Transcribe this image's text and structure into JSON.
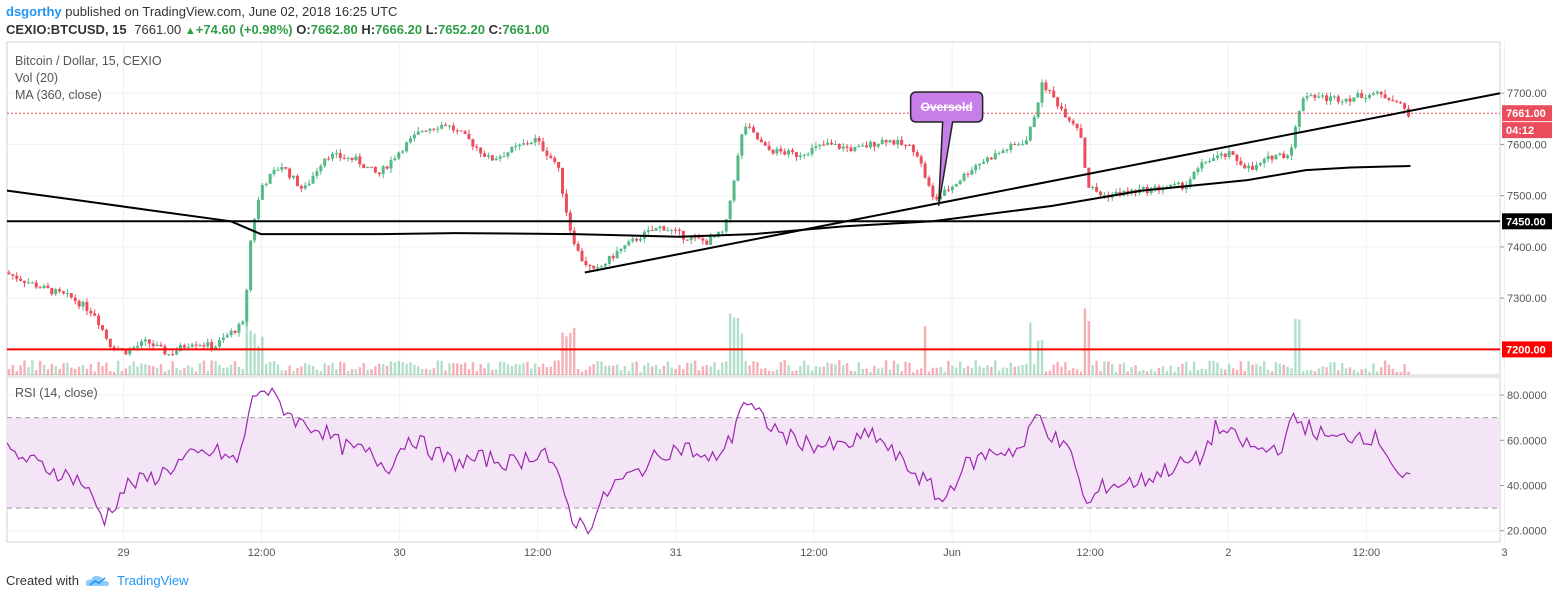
{
  "header": {
    "user": "dsgorthy",
    "published": "published on TradingView.com, June 02, 2018 16:25 UTC",
    "symbol": "CEXIO:BTCUSD, 15",
    "last": "7661.00",
    "change_arrow": "▲",
    "change": "+74.60 (+0.98%)",
    "o_label": "O:",
    "o": "7662.80",
    "h_label": "H:",
    "h": "7666.20",
    "l_label": "L:",
    "l": "7652.20",
    "c_label": "C:",
    "c": "7661.00"
  },
  "footer": {
    "created_with": "Created with",
    "brand": "TradingView",
    "logo_icon": "tradingview-cloud-icon"
  },
  "colors": {
    "up": "#53b987",
    "down": "#eb4d5c",
    "rsi": "#9c27b0",
    "rsi_band": "#f3e5f5",
    "resistance_red": "#ff0000",
    "accent_blue": "#2196f3"
  },
  "chart_data": [
    {
      "type": "candlestick",
      "title": "Bitcoin / Dollar, 15, CEXIO",
      "legend": [
        "Vol (20)",
        "MA (360, close)"
      ],
      "x_ticks": [
        "29",
        "12:00",
        "30",
        "12:00",
        "31",
        "12:00",
        "Jun",
        "12:00",
        "2",
        "12:00",
        "3"
      ],
      "y_ticks": [
        "7700.00",
        "7600.00",
        "7500.00",
        "7400.00",
        "7300.00"
      ],
      "ylim": [
        7150,
        7800
      ],
      "price_tags": [
        {
          "label": "7661.00",
          "value": 7661,
          "color": "#eb4d5c"
        },
        {
          "label": "04:12",
          "value": 7628,
          "color": "#eb4d5c"
        },
        {
          "label": "7450.00",
          "value": 7450,
          "color": "#000000"
        },
        {
          "label": "7200.00",
          "value": 7200,
          "color": "#ff0000"
        }
      ],
      "horizontal_lines": [
        {
          "value": 7450,
          "color": "#000000"
        },
        {
          "value": 7200,
          "color": "#ff0000"
        }
      ],
      "last_price_line": 7661,
      "trendline": {
        "from": {
          "x": 0.387,
          "y": 7350
        },
        "to": {
          "x": 1.0,
          "y": 7700
        }
      },
      "annotation": {
        "text": "Oversold",
        "x": 0.624,
        "y": 7480
      },
      "price_path": [
        [
          0.0,
          7350
        ],
        [
          0.025,
          7320
        ],
        [
          0.045,
          7300
        ],
        [
          0.06,
          7270
        ],
        [
          0.07,
          7210
        ],
        [
          0.08,
          7195
        ],
        [
          0.095,
          7215
        ],
        [
          0.11,
          7190
        ],
        [
          0.125,
          7215
        ],
        [
          0.14,
          7205
        ],
        [
          0.15,
          7230
        ],
        [
          0.16,
          7250
        ],
        [
          0.165,
          7430
        ],
        [
          0.172,
          7520
        ],
        [
          0.185,
          7560
        ],
        [
          0.2,
          7510
        ],
        [
          0.215,
          7580
        ],
        [
          0.235,
          7570
        ],
        [
          0.25,
          7540
        ],
        [
          0.265,
          7590
        ],
        [
          0.28,
          7630
        ],
        [
          0.295,
          7640
        ],
        [
          0.31,
          7610
        ],
        [
          0.325,
          7570
        ],
        [
          0.34,
          7590
        ],
        [
          0.355,
          7610
        ],
        [
          0.37,
          7560
        ],
        [
          0.378,
          7440
        ],
        [
          0.385,
          7380
        ],
        [
          0.395,
          7350
        ],
        [
          0.41,
          7390
        ],
        [
          0.425,
          7420
        ],
        [
          0.44,
          7440
        ],
        [
          0.455,
          7420
        ],
        [
          0.47,
          7410
        ],
        [
          0.482,
          7430
        ],
        [
          0.488,
          7530
        ],
        [
          0.495,
          7640
        ],
        [
          0.51,
          7590
        ],
        [
          0.53,
          7580
        ],
        [
          0.55,
          7600
        ],
        [
          0.57,
          7590
        ],
        [
          0.59,
          7610
        ],
        [
          0.61,
          7590
        ],
        [
          0.622,
          7490
        ],
        [
          0.635,
          7520
        ],
        [
          0.65,
          7560
        ],
        [
          0.67,
          7590
        ],
        [
          0.685,
          7610
        ],
        [
          0.695,
          7720
        ],
        [
          0.71,
          7660
        ],
        [
          0.72,
          7630
        ],
        [
          0.725,
          7520
        ],
        [
          0.735,
          7500
        ],
        [
          0.76,
          7510
        ],
        [
          0.79,
          7520
        ],
        [
          0.805,
          7570
        ],
        [
          0.82,
          7580
        ],
        [
          0.835,
          7550
        ],
        [
          0.85,
          7580
        ],
        [
          0.86,
          7580
        ],
        [
          0.87,
          7700
        ],
        [
          0.885,
          7690
        ],
        [
          0.9,
          7690
        ],
        [
          0.915,
          7700
        ],
        [
          0.93,
          7690
        ],
        [
          0.94,
          7661
        ]
      ],
      "ma360_path": [
        [
          0.0,
          7510
        ],
        [
          0.05,
          7490
        ],
        [
          0.1,
          7470
        ],
        [
          0.15,
          7450
        ],
        [
          0.17,
          7425
        ],
        [
          0.25,
          7425
        ],
        [
          0.3,
          7427
        ],
        [
          0.38,
          7425
        ],
        [
          0.45,
          7420
        ],
        [
          0.5,
          7425
        ],
        [
          0.56,
          7440
        ],
        [
          0.62,
          7450
        ],
        [
          0.7,
          7480
        ],
        [
          0.76,
          7510
        ],
        [
          0.83,
          7530
        ],
        [
          0.87,
          7550
        ],
        [
          0.9,
          7555
        ],
        [
          0.94,
          7558
        ]
      ]
    },
    {
      "type": "line",
      "title": "RSI (14, close)",
      "y_ticks": [
        "80.0000",
        "60.0000",
        "40.0000",
        "20.0000"
      ],
      "ylim": [
        15,
        88
      ],
      "band": [
        30,
        70
      ],
      "values": [
        [
          0.0,
          55
        ],
        [
          0.03,
          47
        ],
        [
          0.05,
          42
        ],
        [
          0.065,
          25
        ],
        [
          0.08,
          40
        ],
        [
          0.1,
          44
        ],
        [
          0.12,
          52
        ],
        [
          0.14,
          55
        ],
        [
          0.155,
          50
        ],
        [
          0.163,
          75
        ],
        [
          0.17,
          84
        ],
        [
          0.18,
          78
        ],
        [
          0.195,
          68
        ],
        [
          0.21,
          65
        ],
        [
          0.225,
          57
        ],
        [
          0.24,
          55
        ],
        [
          0.255,
          48
        ],
        [
          0.27,
          62
        ],
        [
          0.285,
          55
        ],
        [
          0.3,
          50
        ],
        [
          0.32,
          52
        ],
        [
          0.34,
          50
        ],
        [
          0.36,
          56
        ],
        [
          0.372,
          38
        ],
        [
          0.38,
          24
        ],
        [
          0.39,
          22
        ],
        [
          0.405,
          40
        ],
        [
          0.42,
          45
        ],
        [
          0.44,
          55
        ],
        [
          0.455,
          57
        ],
        [
          0.47,
          50
        ],
        [
          0.485,
          60
        ],
        [
          0.492,
          78
        ],
        [
          0.505,
          70
        ],
        [
          0.52,
          62
        ],
        [
          0.54,
          58
        ],
        [
          0.56,
          57
        ],
        [
          0.58,
          63
        ],
        [
          0.6,
          50
        ],
        [
          0.618,
          40
        ],
        [
          0.626,
          32
        ],
        [
          0.64,
          48
        ],
        [
          0.66,
          55
        ],
        [
          0.68,
          56
        ],
        [
          0.69,
          72
        ],
        [
          0.7,
          62
        ],
        [
          0.715,
          52
        ],
        [
          0.722,
          30
        ],
        [
          0.735,
          40
        ],
        [
          0.76,
          42
        ],
        [
          0.78,
          48
        ],
        [
          0.8,
          52
        ],
        [
          0.81,
          66
        ],
        [
          0.825,
          60
        ],
        [
          0.84,
          55
        ],
        [
          0.855,
          58
        ],
        [
          0.862,
          70
        ],
        [
          0.875,
          64
        ],
        [
          0.89,
          60
        ],
        [
          0.905,
          63
        ],
        [
          0.92,
          60
        ],
        [
          0.935,
          42
        ]
      ]
    }
  ]
}
